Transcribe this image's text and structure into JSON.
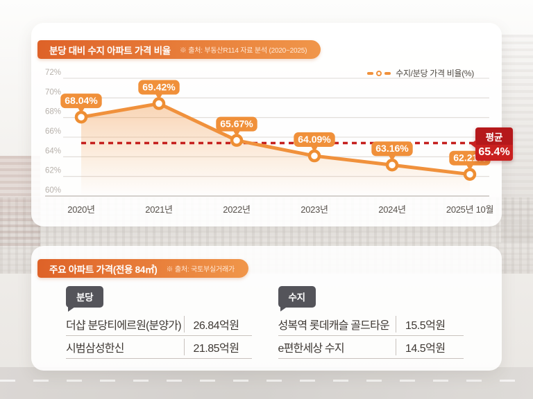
{
  "ratio_section": {
    "title": "분당 대비 수지 아파트 가격 비율",
    "source": "※ 출처: 부동산R114 자료 분석 (2020~2025)",
    "legend_label": "수지/분당 가격 비율(%)",
    "avg_label": "평균",
    "avg_value_label": "65.4%"
  },
  "chart_data": {
    "type": "line",
    "title": "분당 대비 수지 아파트 가격 비율",
    "categories": [
      "2020년",
      "2021년",
      "2022년",
      "2023년",
      "2024년",
      "2025년 10월"
    ],
    "series": [
      {
        "name": "수지/분당 가격 비율(%)",
        "values": [
          68.04,
          69.42,
          65.67,
          64.09,
          63.16,
          62.21
        ]
      }
    ],
    "point_labels": [
      "68.04%",
      "69.42%",
      "65.67%",
      "64.09%",
      "63.16%",
      "62.21%"
    ],
    "average": 65.4,
    "average_label": "평균 65.4%",
    "ylim": [
      60,
      72
    ],
    "ytick_step": 2,
    "ytick_suffix": "%",
    "grid": true,
    "area_fill": true,
    "legend_position": "top-right",
    "colors": {
      "line": "#F0913C",
      "marker_ring": "#EE8E33",
      "label_bubble": "#F0903A",
      "average_line": "#C5201E",
      "average_badge_top": "#B5181B",
      "average_badge_bottom": "#C9201F",
      "grid": "#DEDAD5",
      "baseline": "#C6C1BB",
      "ytick_text": "#B7B1AB",
      "xtick_text": "#56504A"
    }
  },
  "price_section": {
    "title": "주요 아파트 가격(전용 84㎡)",
    "source": "※ 출처: 국토부실거래가",
    "tables": [
      {
        "tag": "분당",
        "rows": [
          {
            "name": "더샵 분당티에르원(분양가)",
            "price": "26.84억원"
          },
          {
            "name": "시범삼성한신",
            "price": "21.85억원"
          }
        ]
      },
      {
        "tag": "수지",
        "rows": [
          {
            "name": "성복역 롯데캐슬 골드타운",
            "price": "15.5억원"
          },
          {
            "name": "e편한세상 수지",
            "price": "14.5억원"
          }
        ]
      }
    ]
  }
}
